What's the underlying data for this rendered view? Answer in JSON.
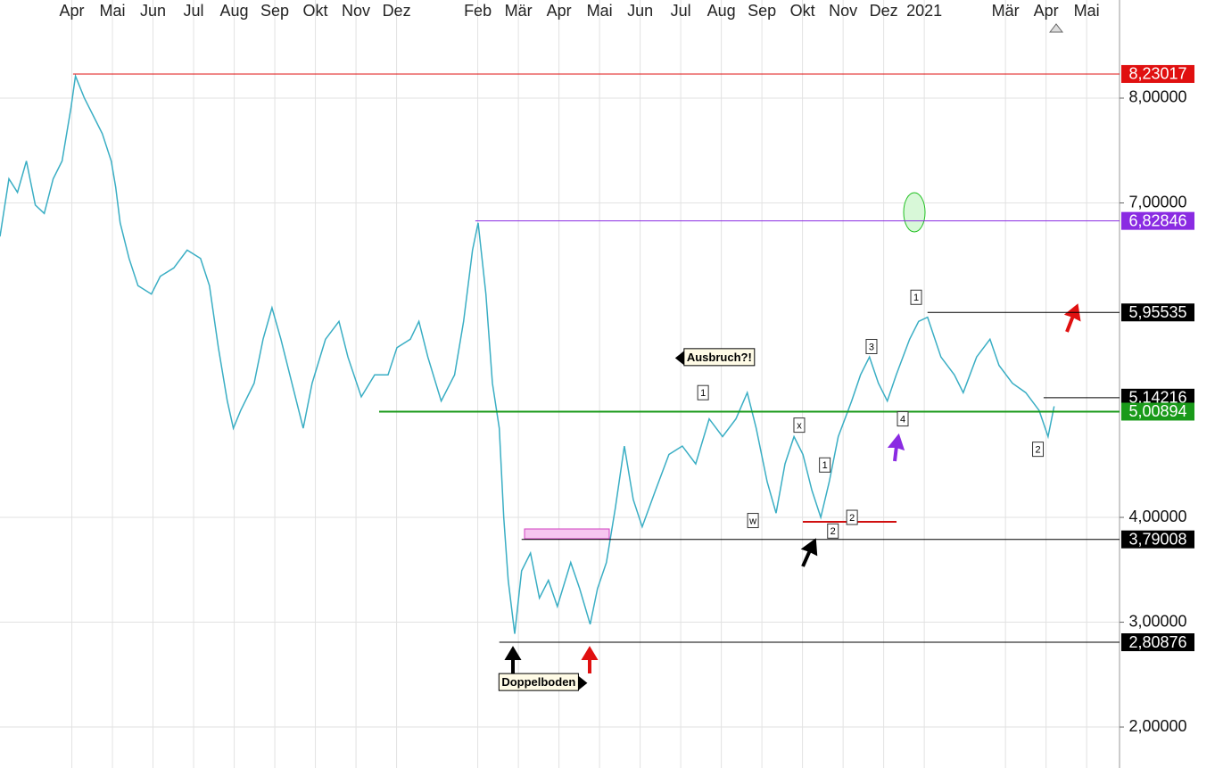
{
  "chart_data": {
    "type": "line",
    "x": [
      -1.27,
      -1.05,
      -0.84,
      -0.62,
      -0.4,
      -0.18,
      0.04,
      0.26,
      0.48,
      0.59,
      0.81,
      1.03,
      1.25,
      1.47,
      1.58,
      1.69,
      1.91,
      2.13,
      2.46,
      2.68,
      3.01,
      3.34,
      3.67,
      3.89,
      4.11,
      4.33,
      4.48,
      4.66,
      4.99,
      5.21,
      5.43,
      5.65,
      5.87,
      6.2,
      6.42,
      6.75,
      7.08,
      7.3,
      7.63,
      7.96,
      8.29,
      8.51,
      8.84,
      9.05,
      9.27,
      9.6,
      9.93,
      10.15,
      10.37,
      10.51,
      10.7,
      10.86,
      11.03,
      11.14,
      11.25,
      11.41,
      11.58,
      11.8,
      12.02,
      12.24,
      12.46,
      12.79,
      13.01,
      13.27,
      13.45,
      13.67,
      13.89,
      14.11,
      14.33,
      14.55,
      14.88,
      15.21,
      15.54,
      15.87,
      16.2,
      16.53,
      16.86,
      17.14,
      17.36,
      17.63,
      17.85,
      18.07,
      18.29,
      18.51,
      18.73,
      18.95,
      19.16,
      19.38,
      19.71,
      19.93,
      20.15,
      20.37,
      20.59,
      20.81,
      21.14,
      21.36,
      21.58,
      21.91,
      22.24,
      22.46,
      22.79,
      23.12,
      23.34,
      23.67,
      24.0,
      24.33,
      24.55,
      24.7
    ],
    "series": [
      {
        "color": "#3aaec4",
        "values": [
          6.68,
          7.23,
          7.1,
          7.4,
          6.98,
          6.9,
          7.23,
          7.4,
          7.91,
          8.21,
          8.0,
          7.83,
          7.66,
          7.4,
          7.15,
          6.81,
          6.47,
          6.21,
          6.13,
          6.3,
          6.38,
          6.55,
          6.47,
          6.21,
          5.62,
          5.11,
          4.85,
          5.02,
          5.28,
          5.7,
          6.0,
          5.7,
          5.36,
          4.85,
          5.28,
          5.7,
          5.87,
          5.53,
          5.15,
          5.36,
          5.36,
          5.62,
          5.7,
          5.87,
          5.53,
          5.11,
          5.36,
          5.87,
          6.55,
          6.81,
          6.13,
          5.28,
          4.85,
          4.0,
          3.4,
          2.89,
          3.49,
          3.66,
          3.23,
          3.4,
          3.15,
          3.57,
          3.32,
          2.98,
          3.32,
          3.57,
          4.09,
          4.68,
          4.17,
          3.91,
          4.26,
          4.6,
          4.68,
          4.51,
          4.94,
          4.77,
          4.94,
          5.19,
          4.85,
          4.34,
          4.04,
          4.51,
          4.77,
          4.6,
          4.26,
          4.0,
          4.34,
          4.77,
          5.11,
          5.36,
          5.53,
          5.28,
          5.11,
          5.36,
          5.7,
          5.87,
          5.91,
          5.53,
          5.36,
          5.19,
          5.53,
          5.7,
          5.45,
          5.28,
          5.19,
          5.02,
          4.77,
          5.06
        ]
      }
    ],
    "xlim": [
      -1.27,
      26.31
    ],
    "ylim": [
      1.609,
      8.936
    ],
    "xticks": [
      {
        "value": 0.5,
        "label": "Apr"
      },
      {
        "value": 1.5,
        "label": "Mai"
      },
      {
        "value": 2.5,
        "label": "Jun"
      },
      {
        "value": 3.5,
        "label": "Jul"
      },
      {
        "value": 4.5,
        "label": "Aug"
      },
      {
        "value": 5.5,
        "label": "Sep"
      },
      {
        "value": 6.5,
        "label": "Okt"
      },
      {
        "value": 7.5,
        "label": "Nov"
      },
      {
        "value": 8.5,
        "label": "Dez"
      },
      {
        "value": 10.5,
        "label": "Feb"
      },
      {
        "value": 11.5,
        "label": "Mär"
      },
      {
        "value": 12.5,
        "label": "Apr"
      },
      {
        "value": 13.5,
        "label": "Mai"
      },
      {
        "value": 14.5,
        "label": "Jun"
      },
      {
        "value": 15.5,
        "label": "Jul"
      },
      {
        "value": 16.5,
        "label": "Aug"
      },
      {
        "value": 17.5,
        "label": "Sep"
      },
      {
        "value": 18.5,
        "label": "Okt"
      },
      {
        "value": 19.5,
        "label": "Nov"
      },
      {
        "value": 20.5,
        "label": "Dez"
      },
      {
        "value": 21.5,
        "label": "2021"
      },
      {
        "value": 23.5,
        "label": "Mär"
      },
      {
        "value": 24.5,
        "label": "Apr"
      },
      {
        "value": 25.5,
        "label": "Mai"
      }
    ],
    "yticks": [
      {
        "value": 2,
        "label": "2,00000"
      },
      {
        "value": 3,
        "label": "3,00000"
      },
      {
        "value": 4,
        "label": "4,00000"
      },
      {
        "value": 7,
        "label": "7,00000"
      },
      {
        "value": 8,
        "label": "8,00000"
      }
    ],
    "grid": true,
    "levels": [
      {
        "value": 8.23017,
        "label": "8,23017",
        "color": "#e01010",
        "x0": 0.53
      },
      {
        "value": 6.82846,
        "label": "6,82846",
        "color": "#8a2be2",
        "x0": 10.44
      },
      {
        "value": 5.95535,
        "label": "5,95535",
        "color": "#000000",
        "x0": 21.58
      },
      {
        "value": 5.14216,
        "label": "5,14216",
        "color": "#000000",
        "x0": 24.44
      },
      {
        "value": 5.00894,
        "label": "5,00894",
        "color": "#1a9a1a",
        "x0": 8.07
      },
      {
        "value": 3.79008,
        "label": "3,79008",
        "color": "#000000",
        "x0": 11.58
      },
      {
        "value": 2.80876,
        "label": "2,80876",
        "color": "#000000",
        "x0": 11.03
      }
    ],
    "annotations": [
      {
        "text": "Ausbruch?!",
        "x": 16.45,
        "y": 5.52
      },
      {
        "text": "Doppelboden",
        "x": 12.0,
        "y": 2.42
      }
    ],
    "markers": [
      {
        "label": "1",
        "x": 16.05,
        "y": 5.19
      },
      {
        "label": "x",
        "x": 18.42,
        "y": 4.88
      },
      {
        "label": "w",
        "x": 17.28,
        "y": 3.97
      },
      {
        "label": "1",
        "x": 19.05,
        "y": 4.5
      },
      {
        "label": "2",
        "x": 19.72,
        "y": 4.0
      },
      {
        "label": "2",
        "x": 19.25,
        "y": 3.87
      },
      {
        "label": "3",
        "x": 20.2,
        "y": 5.63
      },
      {
        "label": "4",
        "x": 20.97,
        "y": 4.94
      },
      {
        "label": "1",
        "x": 21.3,
        "y": 6.1
      },
      {
        "label": "2",
        "x": 24.3,
        "y": 4.65
      }
    ]
  }
}
